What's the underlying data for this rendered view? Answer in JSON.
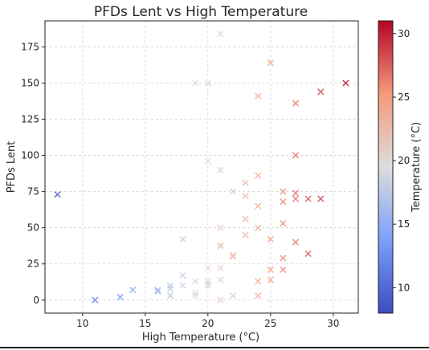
{
  "chart_data": {
    "type": "scatter",
    "title": "PFDs Lent vs High Temperature",
    "xlabel": "High Temperature (°C)",
    "ylabel": "PFDs Lent",
    "xlim": [
      7,
      32
    ],
    "ylim": [
      -9,
      193
    ],
    "xticks": [
      10,
      15,
      20,
      25,
      30
    ],
    "yticks": [
      0,
      25,
      50,
      75,
      100,
      125,
      150,
      175
    ],
    "grid": true,
    "marker": "x",
    "colormap": "coolwarm",
    "colorbar": {
      "label": "Temperature (°C)",
      "range": [
        8,
        31
      ],
      "ticks": [
        10,
        15,
        20,
        25,
        30
      ]
    },
    "points": [
      {
        "x": 8,
        "y": 73
      },
      {
        "x": 11,
        "y": 0
      },
      {
        "x": 13,
        "y": 2
      },
      {
        "x": 14,
        "y": 7
      },
      {
        "x": 16,
        "y": 6
      },
      {
        "x": 16,
        "y": 7
      },
      {
        "x": 17,
        "y": 3
      },
      {
        "x": 17,
        "y": 8
      },
      {
        "x": 17,
        "y": 10
      },
      {
        "x": 18,
        "y": 10
      },
      {
        "x": 18,
        "y": 17
      },
      {
        "x": 18,
        "y": 42
      },
      {
        "x": 19,
        "y": 3
      },
      {
        "x": 19,
        "y": 5
      },
      {
        "x": 19,
        "y": 13
      },
      {
        "x": 19,
        "y": 150
      },
      {
        "x": 20,
        "y": 10
      },
      {
        "x": 20,
        "y": 11
      },
      {
        "x": 20,
        "y": 13
      },
      {
        "x": 20,
        "y": 22
      },
      {
        "x": 20,
        "y": 96
      },
      {
        "x": 20,
        "y": 150
      },
      {
        "x": 21,
        "y": 0
      },
      {
        "x": 21,
        "y": 14
      },
      {
        "x": 21,
        "y": 22
      },
      {
        "x": 21,
        "y": 37
      },
      {
        "x": 21,
        "y": 38
      },
      {
        "x": 21,
        "y": 50
      },
      {
        "x": 21,
        "y": 90
      },
      {
        "x": 21,
        "y": 184
      },
      {
        "x": 22,
        "y": 3
      },
      {
        "x": 22,
        "y": 30
      },
      {
        "x": 22,
        "y": 31
      },
      {
        "x": 22,
        "y": 75
      },
      {
        "x": 23,
        "y": 45
      },
      {
        "x": 23,
        "y": 56
      },
      {
        "x": 23,
        "y": 72
      },
      {
        "x": 23,
        "y": 81
      },
      {
        "x": 24,
        "y": 3
      },
      {
        "x": 24,
        "y": 13
      },
      {
        "x": 24,
        "y": 50
      },
      {
        "x": 24,
        "y": 65
      },
      {
        "x": 24,
        "y": 86
      },
      {
        "x": 24,
        "y": 141
      },
      {
        "x": 25,
        "y": 14
      },
      {
        "x": 25,
        "y": 21
      },
      {
        "x": 25,
        "y": 42
      },
      {
        "x": 25,
        "y": 164
      },
      {
        "x": 26,
        "y": 21
      },
      {
        "x": 26,
        "y": 29
      },
      {
        "x": 26,
        "y": 53
      },
      {
        "x": 26,
        "y": 68
      },
      {
        "x": 26,
        "y": 75
      },
      {
        "x": 27,
        "y": 40
      },
      {
        "x": 27,
        "y": 70
      },
      {
        "x": 27,
        "y": 74
      },
      {
        "x": 27,
        "y": 100
      },
      {
        "x": 27,
        "y": 136
      },
      {
        "x": 28,
        "y": 32
      },
      {
        "x": 28,
        "y": 70
      },
      {
        "x": 29,
        "y": 70
      },
      {
        "x": 29,
        "y": 144
      },
      {
        "x": 31,
        "y": 150
      }
    ]
  }
}
